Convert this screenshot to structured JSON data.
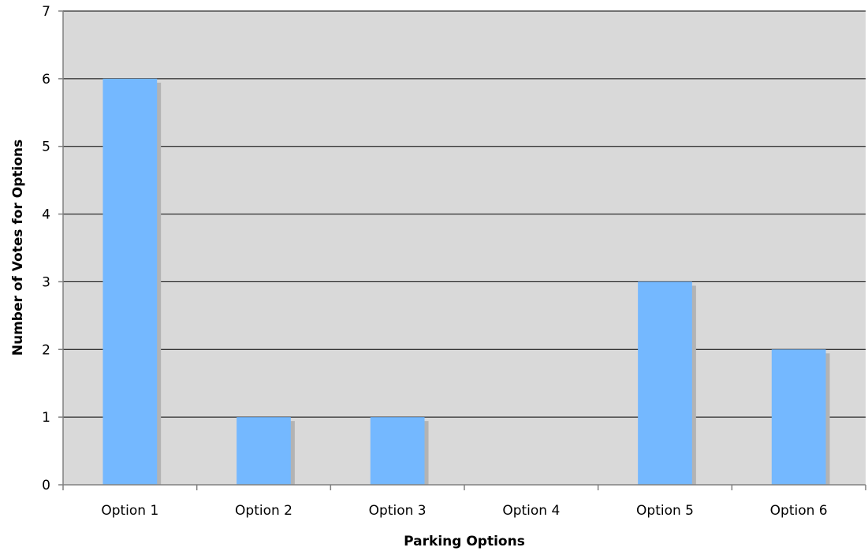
{
  "chart_data": {
    "type": "bar",
    "title": "",
    "categories": [
      "Option 1",
      "Option 2",
      "Option 3",
      "Option 4",
      "Option 5",
      "Option 6"
    ],
    "values": [
      6,
      1,
      1,
      0,
      3,
      2
    ],
    "xlabel": "Parking Options",
    "ylabel": "Number of Votes for Options",
    "ylim": [
      0,
      7
    ],
    "yticks": [
      0,
      1,
      2,
      3,
      4,
      5,
      6,
      7
    ],
    "grid": true,
    "legend": "none",
    "colors": {
      "bar": "#74b8ff",
      "bar_shadow": "#b3b3b3",
      "plot_background": "#d9d9d9",
      "gridline": "#000000",
      "axis": "#808080"
    }
  }
}
